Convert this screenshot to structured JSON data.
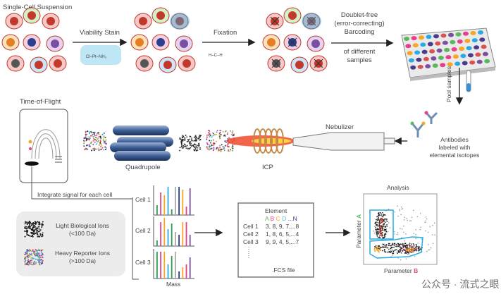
{
  "top": {
    "suspension_title": "Single-Cell Suspension",
    "viability_label": "Viability Stain",
    "fixation_label": "Fixation",
    "barcoding_lines": [
      "Doublet-free",
      "(error-correcting)",
      "Barcoding"
    ],
    "samples_lines": [
      "of different",
      "samples"
    ],
    "pool_label": "Pool samples"
  },
  "middle": {
    "tof_label": "Time-of-Flight",
    "quadrupole_label": "Quadrupole",
    "icp_label": "ICP",
    "nebulizer_label": "Nebulizer",
    "antibodies_lines": [
      "Antibodies",
      "labeled with",
      "elemental isotopes"
    ]
  },
  "bottom": {
    "integrate_label": "Integrate signal for each cell",
    "cells": [
      "Cell 1",
      "Cell 2",
      "Cell 3"
    ],
    "mass_label": "Mass",
    "legend": {
      "light_lines": [
        "Light Biological Ions",
        "(<100 Da)"
      ],
      "heavy_lines": [
        "Heavy Reporter Ions",
        "(>100 Da)"
      ]
    },
    "fcs": {
      "header": "Element",
      "columns": [
        "A",
        "B",
        "C",
        "D",
        "...N"
      ],
      "column_colors": [
        "#5cb85c",
        "#e83e8c",
        "#f5a623",
        "#5bc0de",
        "#4b3b8f"
      ],
      "rows": [
        {
          "label": "Cell 1",
          "values": "3, 8, 9, 7,...8"
        },
        {
          "label": "Cell 2",
          "values": "1, 8, 6, 5,...4"
        },
        {
          "label": "Cell 3",
          "values": "9, 9, 4, 5,...7"
        }
      ],
      "footer": ".FCS file"
    },
    "analysis": {
      "title": "Analysis",
      "ylabel": "Parameter",
      "ylabel_letter": "A",
      "xlabel": "Parameter",
      "xlabel_letter": "B",
      "gate_color": "#29abe2"
    }
  },
  "watermark": "公众号 · 流式之眼"
}
